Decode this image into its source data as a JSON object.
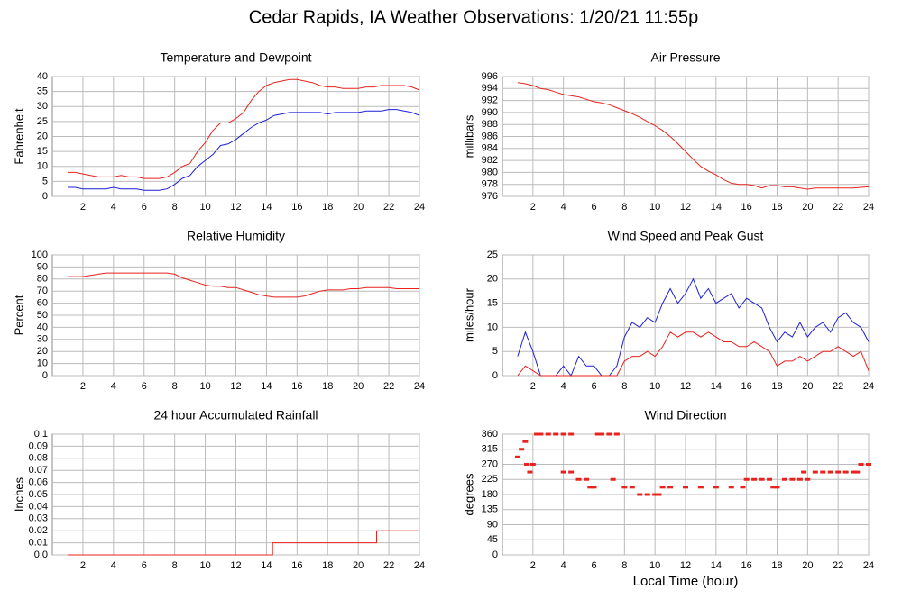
{
  "title": "Cedar Rapids, IA Weather Observations: 1/20/21 11:55p",
  "chart_data": [
    {
      "type": "line",
      "title": "Temperature and Dewpoint",
      "ylabel": "Fahrenheit",
      "x": [
        1,
        1.5,
        2,
        2.5,
        3,
        3.5,
        4,
        4.5,
        5,
        5.5,
        6,
        6.5,
        7,
        7.5,
        8,
        8.5,
        9,
        9.5,
        10,
        10.5,
        11,
        11.5,
        12,
        12.5,
        13,
        13.5,
        14,
        14.5,
        15,
        15.5,
        16,
        16.5,
        17,
        17.5,
        18,
        18.5,
        19,
        19.5,
        20,
        20.5,
        21,
        21.5,
        22,
        22.5,
        23,
        23.5,
        24
      ],
      "series": [
        {
          "color": "#e8231f",
          "values": [
            8,
            8,
            7.5,
            7,
            6.5,
            6.5,
            6.5,
            7,
            6.5,
            6.5,
            6,
            6,
            6,
            6.5,
            8,
            10,
            11,
            15,
            18,
            22,
            24.5,
            24.5,
            26,
            28,
            32,
            35,
            37,
            38,
            38.5,
            39,
            39,
            38.5,
            38,
            37,
            36.5,
            36.5,
            36,
            36,
            36,
            36.5,
            36.5,
            37,
            37,
            37,
            37,
            36.5,
            35.5
          ]
        },
        {
          "color": "#1f1fd8",
          "values": [
            3,
            3,
            2.5,
            2.5,
            2.5,
            2.5,
            3,
            2.5,
            2.5,
            2.5,
            2,
            2,
            2,
            2.5,
            4,
            6,
            7,
            10,
            12,
            14,
            17,
            17.5,
            19,
            21,
            23,
            24.5,
            25.5,
            27,
            27.5,
            28,
            28,
            28,
            28,
            28,
            27.5,
            28,
            28,
            28,
            28,
            28.5,
            28.5,
            28.5,
            29,
            29,
            28.5,
            28,
            27
          ]
        }
      ],
      "xlim": [
        0,
        24
      ],
      "xticks": [
        2,
        4,
        6,
        8,
        10,
        12,
        14,
        16,
        18,
        20,
        22,
        24
      ],
      "ylim": [
        0,
        40
      ],
      "yticks": [
        0,
        5,
        10,
        15,
        20,
        25,
        30,
        35,
        40
      ],
      "grid": true
    },
    {
      "type": "line",
      "title": "Air Pressure",
      "ylabel": "millibars",
      "x": [
        1,
        1.5,
        2,
        2.5,
        3,
        3.5,
        4,
        4.5,
        5,
        5.5,
        6,
        6.5,
        7,
        7.5,
        8,
        8.5,
        9,
        9.5,
        10,
        10.5,
        11,
        11.5,
        12,
        12.5,
        13,
        13.5,
        14,
        14.5,
        15,
        15.5,
        16,
        16.5,
        17,
        17.5,
        18,
        18.5,
        19,
        19.5,
        20,
        20.5,
        21,
        21.5,
        22,
        22.5,
        23,
        23.5,
        24
      ],
      "series": [
        {
          "color": "#e8231f",
          "values": [
            995,
            994.8,
            994.5,
            994,
            993.8,
            993.4,
            993,
            992.8,
            992.6,
            992.2,
            991.8,
            991.6,
            991.3,
            990.8,
            990.3,
            989.8,
            989.2,
            988.5,
            987.8,
            987,
            986,
            984.8,
            983.5,
            982.2,
            981,
            980.2,
            979.6,
            978.8,
            978.2,
            978,
            978,
            977.8,
            977.4,
            977.8,
            977.8,
            977.6,
            977.6,
            977.4,
            977.2,
            977.4,
            977.4,
            977.4,
            977.4,
            977.4,
            977.4,
            977.5,
            977.6
          ]
        }
      ],
      "xlim": [
        0,
        24
      ],
      "xticks": [
        2,
        4,
        6,
        8,
        10,
        12,
        14,
        16,
        18,
        20,
        22,
        24
      ],
      "ylim": [
        976,
        996
      ],
      "yticks": [
        976,
        978,
        980,
        982,
        984,
        986,
        988,
        990,
        992,
        994,
        996
      ],
      "grid": true
    },
    {
      "type": "line",
      "title": "Relative Humidity",
      "ylabel": "Percent",
      "x": [
        1,
        1.5,
        2,
        2.5,
        3,
        3.5,
        4,
        4.5,
        5,
        5.5,
        6,
        6.5,
        7,
        7.5,
        8,
        8.5,
        9,
        9.5,
        10,
        10.5,
        11,
        11.5,
        12,
        12.5,
        13,
        13.5,
        14,
        14.5,
        15,
        15.5,
        16,
        16.5,
        17,
        17.5,
        18,
        18.5,
        19,
        19.5,
        20,
        20.5,
        21,
        21.5,
        22,
        22.5,
        23,
        23.5,
        24
      ],
      "series": [
        {
          "color": "#e8231f",
          "values": [
            82,
            82,
            82,
            83,
            84,
            85,
            85,
            85,
            85,
            85,
            85,
            85,
            85,
            85,
            84,
            81,
            79,
            77,
            75,
            74,
            74,
            73,
            73,
            71,
            69,
            67,
            66,
            65,
            65,
            65,
            65,
            66,
            68,
            70,
            71,
            71,
            71,
            72,
            72,
            73,
            73,
            73,
            73,
            72,
            72,
            72,
            72
          ]
        }
      ],
      "xlim": [
        0,
        24
      ],
      "xticks": [
        2,
        4,
        6,
        8,
        10,
        12,
        14,
        16,
        18,
        20,
        22,
        24
      ],
      "ylim": [
        0,
        100
      ],
      "yticks": [
        0,
        10,
        20,
        30,
        40,
        50,
        60,
        70,
        80,
        90,
        100
      ],
      "grid": true
    },
    {
      "type": "line",
      "title": "Wind Speed and Peak Gust",
      "ylabel": "miles/hour",
      "x": [
        1,
        1.5,
        2,
        2.5,
        3,
        3.5,
        4,
        4.5,
        5,
        5.5,
        6,
        6.5,
        7,
        7.5,
        8,
        8.5,
        9,
        9.5,
        10,
        10.5,
        11,
        11.5,
        12,
        12.5,
        13,
        13.5,
        14,
        14.5,
        15,
        15.5,
        16,
        16.5,
        17,
        17.5,
        18,
        18.5,
        19,
        19.5,
        20,
        20.5,
        21,
        21.5,
        22,
        22.5,
        23,
        23.5,
        24
      ],
      "series": [
        {
          "color": "#1f1fd8",
          "values": [
            4,
            9,
            5,
            0,
            0,
            0,
            2,
            0,
            4,
            2,
            2,
            0,
            0,
            2,
            8,
            11,
            10,
            12,
            11,
            15,
            18,
            15,
            17,
            20,
            16,
            18,
            15,
            16,
            17,
            14,
            16,
            15,
            14,
            10,
            7,
            9,
            8,
            11,
            8,
            10,
            11,
            9,
            12,
            13,
            11,
            10,
            7
          ]
        },
        {
          "color": "#e8231f",
          "values": [
            0,
            2,
            1,
            0,
            0,
            0,
            0,
            0,
            0,
            0,
            0,
            0,
            0,
            0,
            3,
            4,
            4,
            5,
            4,
            6,
            9,
            8,
            9,
            9,
            8,
            9,
            8,
            7,
            7,
            6,
            6,
            7,
            6,
            5,
            2,
            3,
            3,
            4,
            3,
            4,
            5,
            5,
            6,
            5,
            4,
            5,
            1
          ]
        }
      ],
      "xlim": [
        0,
        24
      ],
      "xticks": [
        2,
        4,
        6,
        8,
        10,
        12,
        14,
        16,
        18,
        20,
        22,
        24
      ],
      "ylim": [
        0,
        25
      ],
      "yticks": [
        0,
        5,
        10,
        15,
        20,
        25
      ],
      "grid": true
    },
    {
      "type": "line",
      "title": "24 hour Accumulated Rainfall",
      "ylabel": "Inches",
      "x": [
        1,
        14.4,
        14.4,
        21.2,
        21.2,
        24
      ],
      "series": [
        {
          "color": "#e8231f",
          "values": [
            0,
            0,
            0.01,
            0.01,
            0.02,
            0.02
          ]
        }
      ],
      "xlim": [
        0,
        24
      ],
      "xticks": [
        2,
        4,
        6,
        8,
        10,
        12,
        14,
        16,
        18,
        20,
        22,
        24
      ],
      "ylim": [
        0,
        0.1
      ],
      "yticks": [
        {
          "value": 0,
          "label": "0.0"
        },
        0.01,
        0.02,
        0.03,
        0.04,
        0.05,
        0.06,
        0.07,
        0.08,
        0.09,
        {
          "value": 0.1,
          "label": "0.1"
        }
      ],
      "grid": true
    },
    {
      "type": "scatter",
      "title": "Wind Direction",
      "ylabel": "degrees",
      "xlabel": "Local Time (hour)",
      "x": [
        1,
        1.25,
        1.5,
        1.6,
        1.8,
        2,
        2.25,
        2.5,
        3,
        3.5,
        4,
        4,
        4.5,
        4.5,
        5,
        5.5,
        5.75,
        6,
        6.25,
        6.5,
        7,
        7.25,
        7.5,
        8,
        8.5,
        9,
        9.5,
        10,
        10.25,
        10.5,
        11,
        12,
        13,
        14,
        15,
        15.75,
        16,
        16.5,
        17,
        17.5,
        17.75,
        18,
        18.5,
        19,
        19.5,
        19.75,
        20,
        20.5,
        21,
        21.5,
        22,
        22.5,
        23,
        23.25,
        23.5,
        24
      ],
      "series": [
        {
          "color": "#e8231f",
          "values": [
            292,
            315,
            338,
            270,
            247,
            270,
            360,
            360,
            360,
            360,
            360,
            247,
            360,
            247,
            225,
            225,
            202,
            202,
            360,
            360,
            360,
            225,
            360,
            202,
            202,
            180,
            180,
            180,
            180,
            202,
            202,
            202,
            202,
            202,
            202,
            202,
            225,
            225,
            225,
            225,
            202,
            202,
            225,
            225,
            225,
            247,
            225,
            247,
            247,
            247,
            247,
            247,
            247,
            247,
            270,
            270
          ]
        }
      ],
      "xlim": [
        0,
        24
      ],
      "xticks": [
        2,
        4,
        6,
        8,
        10,
        12,
        14,
        16,
        18,
        20,
        22,
        24
      ],
      "ylim": [
        0,
        360
      ],
      "yticks": [
        0,
        45,
        90,
        135,
        180,
        225,
        270,
        315,
        360
      ],
      "grid": true
    }
  ]
}
